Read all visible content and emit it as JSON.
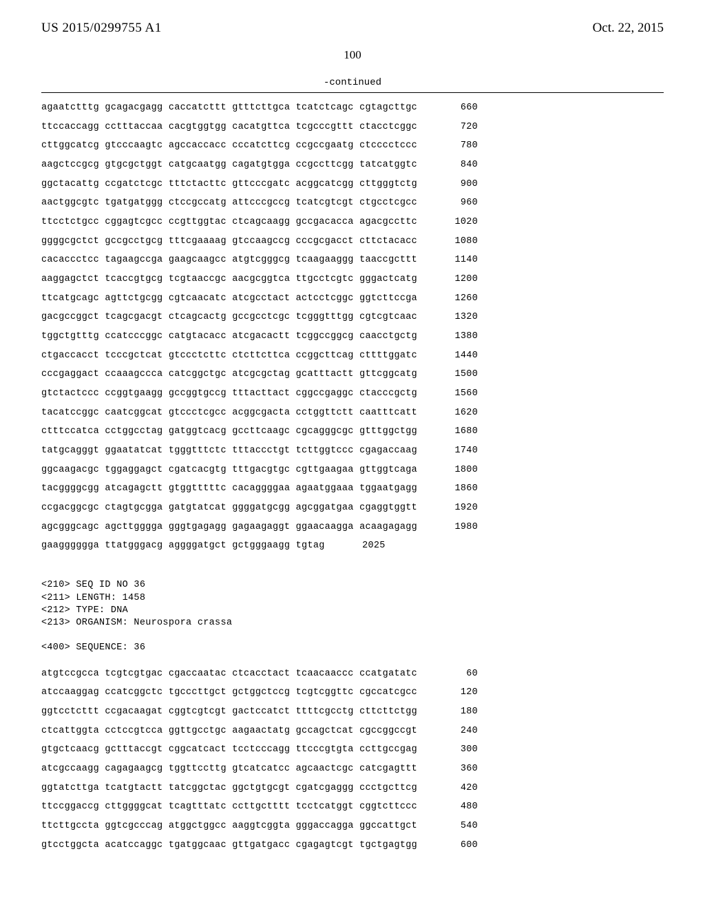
{
  "header": {
    "publication_number": "US 2015/0299755 A1",
    "publication_date": "Oct. 22, 2015"
  },
  "page_number": "100",
  "continued_label": "-continued",
  "sequence1": {
    "lines": [
      {
        "text": "agaatctttg gcagacgagg caccatcttt gtttcttgca tcatctcagc cgtagcttgc",
        "pos": "660"
      },
      {
        "text": "ttccaccagg cctttaccaa cacgtggtgg cacatgttca tcgcccgttt ctacctcggc",
        "pos": "720"
      },
      {
        "text": "cttggcatcg gtcccaagtc agccaccacc cccatcttcg ccgccgaatg ctcccctccc",
        "pos": "780"
      },
      {
        "text": "aagctccgcg gtgcgctggt catgcaatgg cagatgtgga ccgccttcgg tatcatggtc",
        "pos": "840"
      },
      {
        "text": "ggctacattg ccgatctcgc tttctacttc gttcccgatc acggcatcgg cttgggtctg",
        "pos": "900"
      },
      {
        "text": "aactggcgtc tgatgatggg ctccgccatg attcccgccg tcatcgtcgt ctgcctcgcc",
        "pos": "960"
      },
      {
        "text": "ttcctctgcc cggagtcgcc ccgttggtac ctcagcaagg gccgacacca agacgccttc",
        "pos": "1020"
      },
      {
        "text": "ggggcgctct gccgcctgcg tttcgaaaag gtccaagccg cccgcgacct cttctacacc",
        "pos": "1080"
      },
      {
        "text": "cacaccctcc tagaagccga gaagcaagcc atgtcgggcg tcaagaaggg taaccgcttt",
        "pos": "1140"
      },
      {
        "text": "aaggagctct tcaccgtgcg tcgtaaccgc aacgcggtca ttgcctcgtc gggactcatg",
        "pos": "1200"
      },
      {
        "text": "ttcatgcagc agttctgcgg cgtcaacatc atcgcctact actcctcggc ggtcttccga",
        "pos": "1260"
      },
      {
        "text": "gacgccggct tcagcgacgt ctcagcactg gccgcctcgc tcgggtttgg cgtcgtcaac",
        "pos": "1320"
      },
      {
        "text": "tggctgtttg ccatcccggc catgtacacc atcgacactt tcggccggcg caacctgctg",
        "pos": "1380"
      },
      {
        "text": "ctgaccacct tcccgctcat gtccctcttc ctcttcttca ccggcttcag cttttggatc",
        "pos": "1440"
      },
      {
        "text": "cccgaggact ccaaagccca catcggctgc atcgcgctag gcatttactt gttcggcatg",
        "pos": "1500"
      },
      {
        "text": "gtctactccc ccggtgaagg gccggtgccg tttacttact cggccgaggc ctacccgctg",
        "pos": "1560"
      },
      {
        "text": "tacatccggc caatcggcat gtccctcgcc acggcgacta cctggttctt caatttcatt",
        "pos": "1620"
      },
      {
        "text": "ctttccatca cctggcctag gatggtcacg gccttcaagc cgcagggcgc gtttggctgg",
        "pos": "1680"
      },
      {
        "text": "tatgcagggt ggaatatcat tgggtttctc tttaccctgt tcttggtccc cgagaccaag",
        "pos": "1740"
      },
      {
        "text": "ggcaagacgc tggaggagct cgatcacgtg tttgacgtgc cgttgaagaa gttggtcaga",
        "pos": "1800"
      },
      {
        "text": "tacggggcgg atcagagctt gtggtttttc cacaggggaa agaatggaaa tggaatgagg",
        "pos": "1860"
      },
      {
        "text": "ccgacggcgc ctagtgcgga gatgtatcat ggggatgcgg agcggatgaa cgaggtggtt",
        "pos": "1920"
      },
      {
        "text": "agcgggcagc agcttgggga gggtgagagg gagaagaggt ggaacaagga acaagagagg",
        "pos": "1980"
      },
      {
        "text": "gaagggggga ttatgggacg aggggatgct gctgggaagg tgtag",
        "pos": "2025"
      }
    ]
  },
  "meta": {
    "seq_id": "<210> SEQ ID NO 36",
    "length": "<211> LENGTH: 1458",
    "type": "<212> TYPE: DNA",
    "organism": "<213> ORGANISM: Neurospora crassa",
    "sequence_label": "<400> SEQUENCE: 36"
  },
  "sequence2": {
    "lines": [
      {
        "text": "atgtccgcca tcgtcgtgac cgaccaatac ctcacctact tcaacaaccc ccatgatatc",
        "pos": "60"
      },
      {
        "text": "atccaaggag ccatcggctc tgcccttgct gctggctccg tcgtcggttc cgccatcgcc",
        "pos": "120"
      },
      {
        "text": "ggtcctcttt ccgacaagat cggtcgtcgt gactccatct ttttcgcctg cttcttctgg",
        "pos": "180"
      },
      {
        "text": "ctcattggta cctccgtcca ggttgcctgc aagaactatg gccagctcat cgccggccgt",
        "pos": "240"
      },
      {
        "text": "gtgctcaacg gctttaccgt cggcatcact tcctcccagg ttcccgtgta ccttgccgag",
        "pos": "300"
      },
      {
        "text": "atcgccaagg cagagaagcg tggttccttg gtcatcatcc agcaactcgc catcgagttt",
        "pos": "360"
      },
      {
        "text": "ggtatcttga tcatgtactt tatcggctac ggctgtgcgt cgatcgaggg ccctgcttcg",
        "pos": "420"
      },
      {
        "text": "ttccggaccg cttggggcat tcagtttatc ccttgctttt tcctcatggt cggtcttccc",
        "pos": "480"
      },
      {
        "text": "ttcttgccta ggtcgcccag atggctggcc aaggtcggta gggaccagga ggccattgct",
        "pos": "540"
      },
      {
        "text": "gtcctggcta acatccaggc tgatggcaac gttgatgacc cgagagtcgt tgctgagtgg",
        "pos": "600"
      }
    ]
  },
  "style": {
    "background_color": "#ffffff",
    "text_color": "#000000",
    "mono_font": "Courier New",
    "serif_font": "Times New Roman",
    "header_fontsize": 19,
    "pagenum_fontsize": 17,
    "seq_fontsize": 13.5,
    "seq_line_height": 2.05,
    "rule_color": "#000000",
    "rule_width": 1.5
  }
}
